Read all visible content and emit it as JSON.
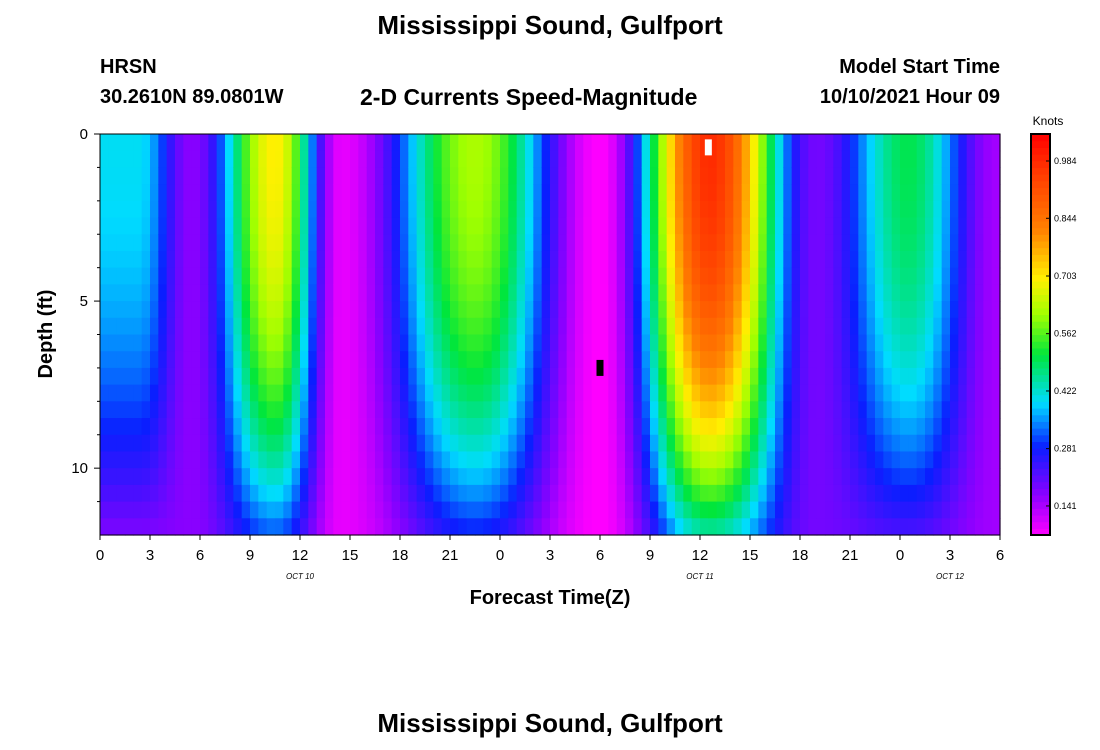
{
  "header": {
    "title": "Mississippi Sound, Gulfport",
    "station": "HRSN",
    "coords": "30.2610N  89.0801W",
    "subtitle": "2-D Currents Speed-Magnitude",
    "start_label": "Model Start Time",
    "start_value": "10/10/2021 Hour 09"
  },
  "footer": {
    "title": "Mississippi Sound, Gulfport"
  },
  "chart_data": {
    "type": "heatmap",
    "xlabel": "Forecast Time(Z)",
    "ylabel": "Depth (ft)",
    "x_tick_labels": [
      "0",
      "3",
      "6",
      "9",
      "12",
      "15",
      "18",
      "21",
      "0",
      "3",
      "6",
      "9",
      "12",
      "15",
      "18",
      "21",
      "0",
      "3",
      "6"
    ],
    "x_range_hours": [
      0,
      54
    ],
    "date_labels": [
      {
        "hour": 12,
        "text": "OCT 10"
      },
      {
        "hour": 36,
        "text": "OCT 11"
      },
      {
        "hour": 51,
        "text": "OCT 12"
      }
    ],
    "y_tick_labels": [
      "0",
      "5",
      "10"
    ],
    "y_range_ft": [
      0,
      12
    ],
    "y_major_ticks": [
      0,
      5,
      10
    ],
    "y_minor_ticks": [
      1,
      2,
      3,
      4,
      6,
      7,
      8,
      9,
      11
    ],
    "colorbar": {
      "label": "Knots",
      "range": [
        0.07,
        1.05
      ],
      "tick_labels": [
        "0.984",
        "0.844",
        "0.703",
        "0.562",
        "0.422",
        "0.281",
        "0.141"
      ],
      "tick_values": [
        0.984,
        0.844,
        0.703,
        0.562,
        0.422,
        0.281,
        0.141
      ]
    },
    "surface_peaks": [
      {
        "hour": 2.3,
        "speed": 0.4
      },
      {
        "hour": 10.5,
        "speed": 0.7
      },
      {
        "hour": 22.5,
        "speed": 0.62
      },
      {
        "hour": 36.6,
        "speed": 0.98
      },
      {
        "hour": 48.5,
        "speed": 0.5
      }
    ],
    "slack_minima": [
      {
        "hour": 5.5,
        "speed": 0.17
      },
      {
        "hour": 14.5,
        "speed": 0.09
      },
      {
        "hour": 30.0,
        "speed": 0.07
      },
      {
        "hour": 43.0,
        "speed": 0.19
      },
      {
        "hour": 53.8,
        "speed": 0.15
      }
    ],
    "markers": [
      {
        "hour": 36.5,
        "depth": 0.4,
        "color": "#ffffff"
      },
      {
        "hour": 30.0,
        "depth": 7.0,
        "color": "#000000"
      }
    ]
  }
}
